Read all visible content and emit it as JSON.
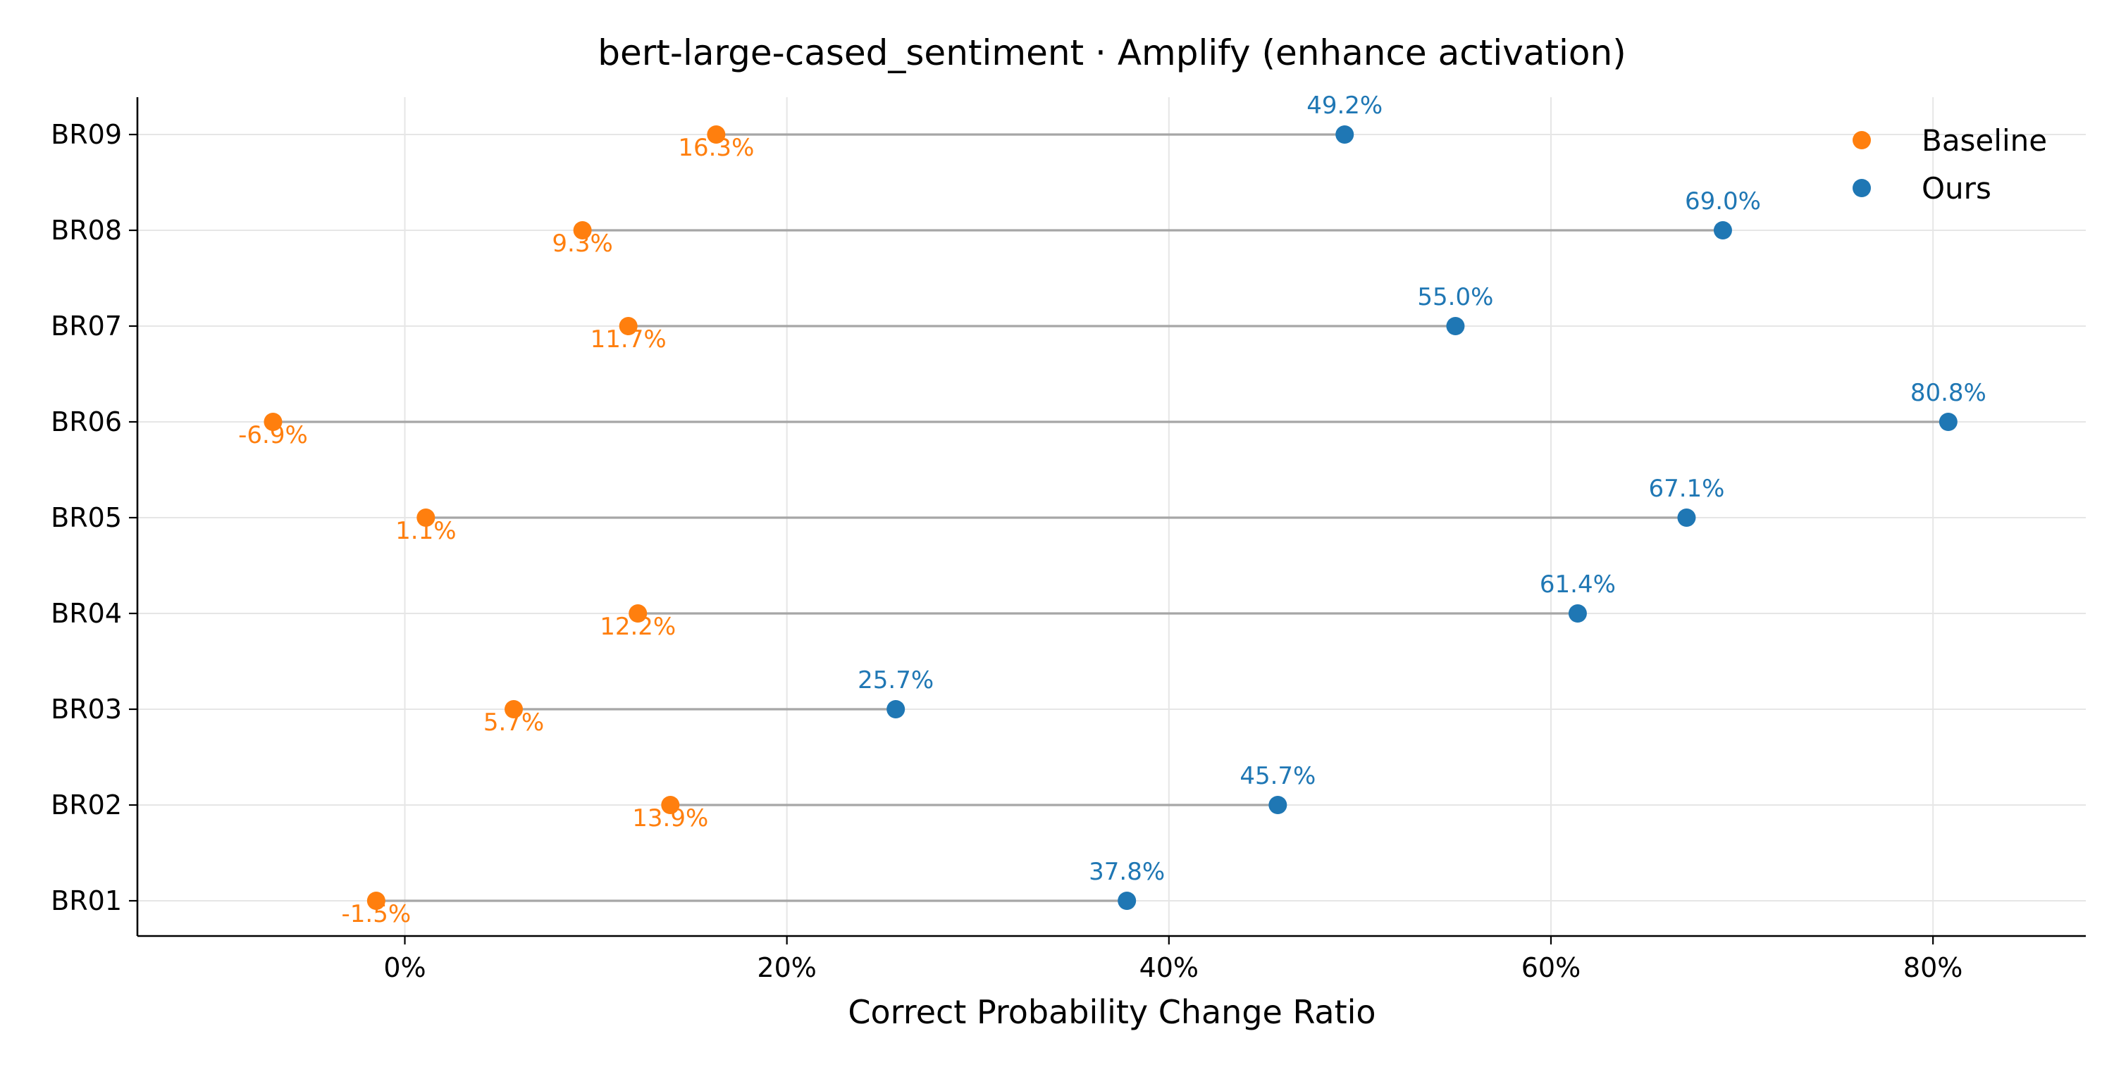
{
  "chart_data": {
    "type": "scatter",
    "subtype": "dumbbell",
    "title": "bert-large-cased_sentiment · Amplify (enhance activation)",
    "xlabel": "Correct Probability Change Ratio",
    "ylabel": "",
    "xlim": [
      -14,
      88
    ],
    "x_ticks": [
      0,
      20,
      40,
      60,
      80
    ],
    "x_tick_labels": [
      "0%",
      "20%",
      "40%",
      "60%",
      "80%"
    ],
    "categories": [
      "BR01",
      "BR02",
      "BR03",
      "BR04",
      "BR05",
      "BR06",
      "BR07",
      "BR08",
      "BR09"
    ],
    "series": [
      {
        "name": "Baseline",
        "color": "#ff7f0e",
        "values": [
          -1.5,
          13.9,
          5.7,
          12.2,
          1.1,
          -6.9,
          11.7,
          9.3,
          16.3
        ],
        "labels": [
          "-1.5%",
          "13.9%",
          "5.7%",
          "12.2%",
          "1.1%",
          "-6.9%",
          "11.7%",
          "9.3%",
          "16.3%"
        ]
      },
      {
        "name": "Ours",
        "color": "#1f77b4",
        "values": [
          37.8,
          45.7,
          25.7,
          61.4,
          67.1,
          80.8,
          55.0,
          69.0,
          49.2
        ],
        "labels": [
          "37.8%",
          "45.7%",
          "25.7%",
          "61.4%",
          "67.1%",
          "80.8%",
          "55.0%",
          "69.0%",
          "49.2%"
        ]
      }
    ],
    "connector_color": "#a6a6a6",
    "grid": true,
    "legend": "top-right"
  }
}
